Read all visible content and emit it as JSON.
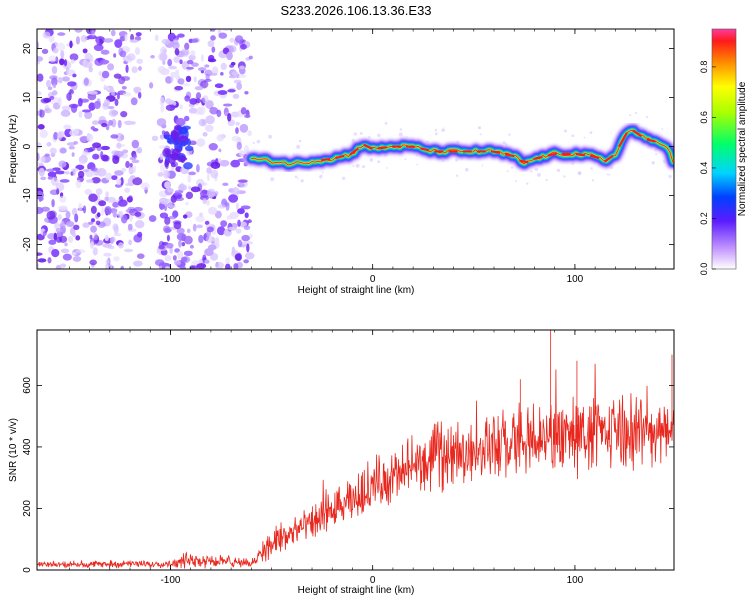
{
  "title": "S233.2026.106.13.36.E33",
  "chart_data": [
    {
      "type": "heatmap",
      "xlabel": "Height of straight line (km)",
      "ylabel": "Frequency (Hz)",
      "xlim": [
        -166,
        149
      ],
      "ylim": [
        -25,
        24
      ],
      "x_ticks": [
        "-100",
        "0",
        "100"
      ],
      "y_ticks": [
        "20",
        "10",
        "0",
        "-10",
        "-20"
      ],
      "colorbar": {
        "label": "Normalized spectral amplitude",
        "range": [
          0,
          0.95
        ],
        "ticks": [
          "0.0",
          "0.2",
          "0.4",
          "0.6",
          "0.8"
        ],
        "colormap": "rainbow"
      },
      "ridge": {
        "x": [
          -60,
          -50,
          -40,
          -30,
          -20,
          -10,
          -5,
          0,
          10,
          20,
          30,
          40,
          50,
          60,
          70,
          75,
          80,
          90,
          100,
          110,
          115,
          120,
          125,
          128,
          135,
          140,
          145,
          149
        ],
        "y": [
          -2.5,
          -3,
          -3.5,
          -3,
          -2.5,
          -1.5,
          0.5,
          -0.5,
          0,
          0,
          -1,
          -1,
          -1,
          -1,
          -2,
          -3.5,
          -2.5,
          -1.5,
          -1.5,
          -2,
          -3,
          -1.5,
          2.5,
          3.5,
          1.5,
          1,
          0.5,
          -3.5
        ]
      },
      "noise_region_x": [
        -166,
        -60
      ],
      "gap_x": [
        -115,
        -105
      ]
    },
    {
      "type": "line",
      "xlabel": "Height of straight line (km)",
      "ylabel": "SNR (10 * v/v)",
      "xlim": [
        -166,
        149
      ],
      "ylim": [
        0,
        780
      ],
      "x_ticks": [
        "-100",
        "0",
        "100"
      ],
      "y_ticks": [
        "0",
        "200",
        "400",
        "600"
      ],
      "color": "#e8281e",
      "envelope": {
        "x": [
          -166,
          -100,
          -90,
          -60,
          -50,
          -45,
          -40,
          -30,
          -20,
          -10,
          0,
          10,
          20,
          30,
          40,
          50,
          60,
          70,
          80,
          90,
          100,
          110,
          120,
          130,
          140,
          149
        ],
        "mean": [
          18,
          20,
          35,
          22,
          90,
          100,
          120,
          150,
          190,
          220,
          280,
          300,
          330,
          360,
          380,
          390,
          400,
          410,
          420,
          430,
          440,
          440,
          450,
          450,
          450,
          450
        ],
        "spread": [
          12,
          15,
          35,
          15,
          70,
          70,
          60,
          70,
          80,
          90,
          100,
          110,
          110,
          120,
          120,
          120,
          130,
          140,
          140,
          150,
          150,
          140,
          140,
          140,
          130,
          120
        ]
      },
      "peak_points": [
        [
          88,
          780
        ],
        [
          101,
          680
        ],
        [
          148,
          700
        ],
        [
          73,
          620
        ]
      ]
    }
  ]
}
